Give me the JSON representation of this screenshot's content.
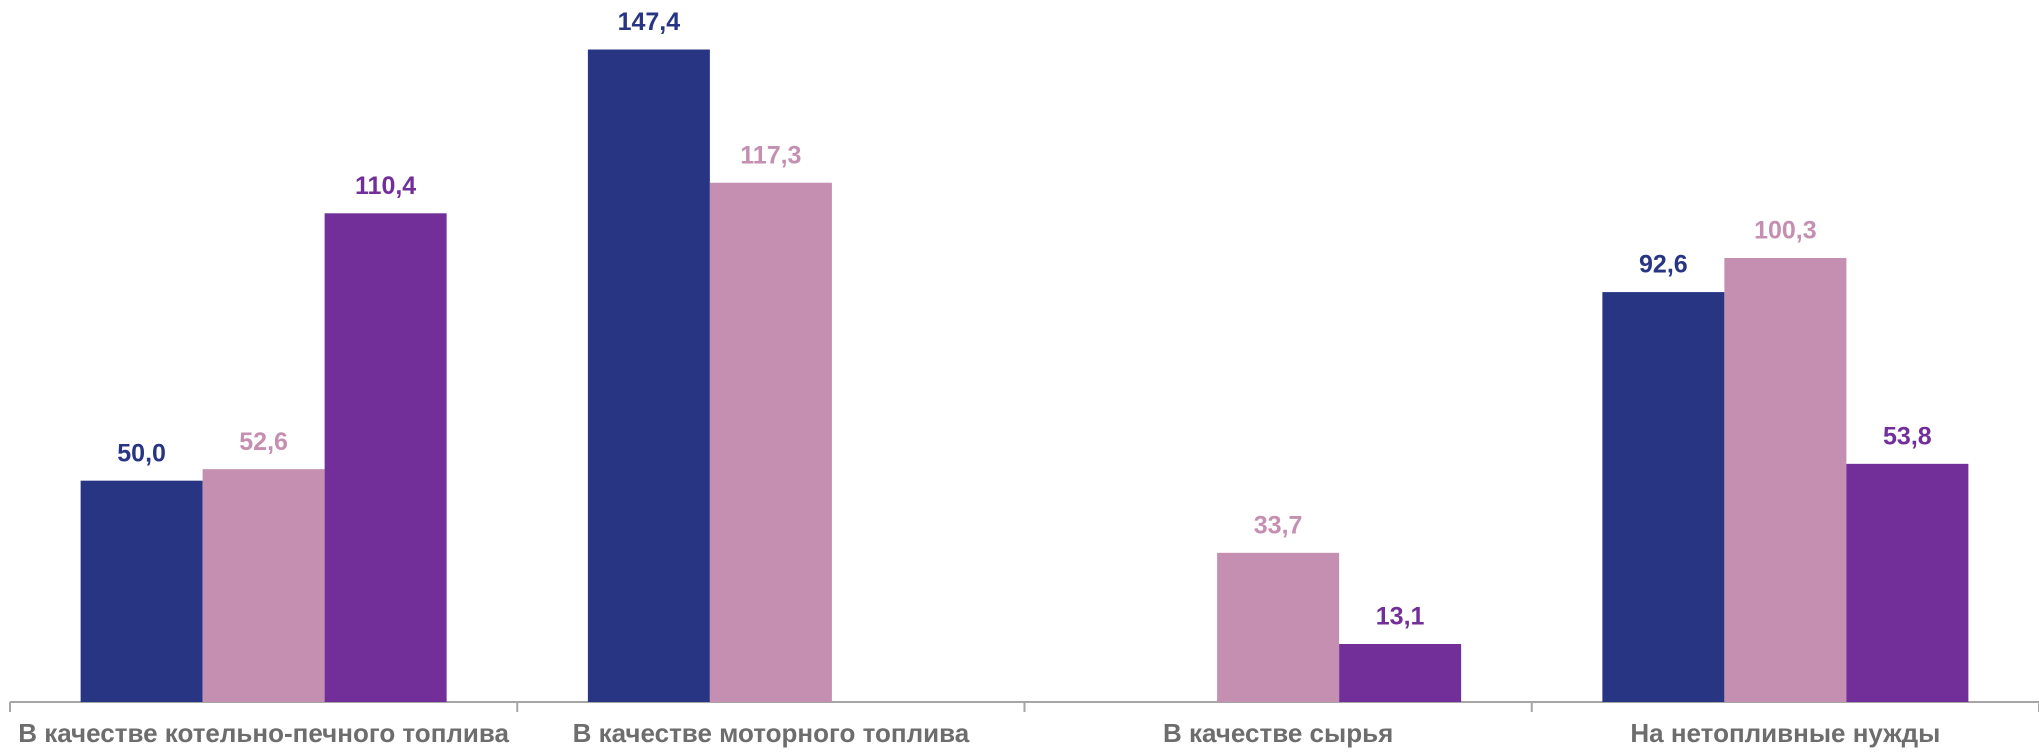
{
  "chart_data": {
    "type": "bar",
    "categories": [
      "В качестве котельно-печного топлива",
      "В качестве моторного топлива",
      "В качестве сырья",
      "На нетопливные нужды"
    ],
    "series": [
      {
        "color": "#283583",
        "values": [
          50.0,
          147.4,
          null,
          92.6
        ],
        "value_labels": [
          "50,0",
          "147,4",
          null,
          "92,6"
        ]
      },
      {
        "color": "#c48fb0",
        "values": [
          52.6,
          117.3,
          33.7,
          100.3
        ],
        "value_labels": [
          "52,6",
          "117,3",
          "33,7",
          "100,3"
        ]
      },
      {
        "color": "#722f9a",
        "values": [
          110.4,
          null,
          13.1,
          53.8
        ],
        "value_labels": [
          "110,4",
          null,
          "13,1",
          "53,8"
        ]
      }
    ],
    "ylim": [
      0,
      150
    ]
  }
}
